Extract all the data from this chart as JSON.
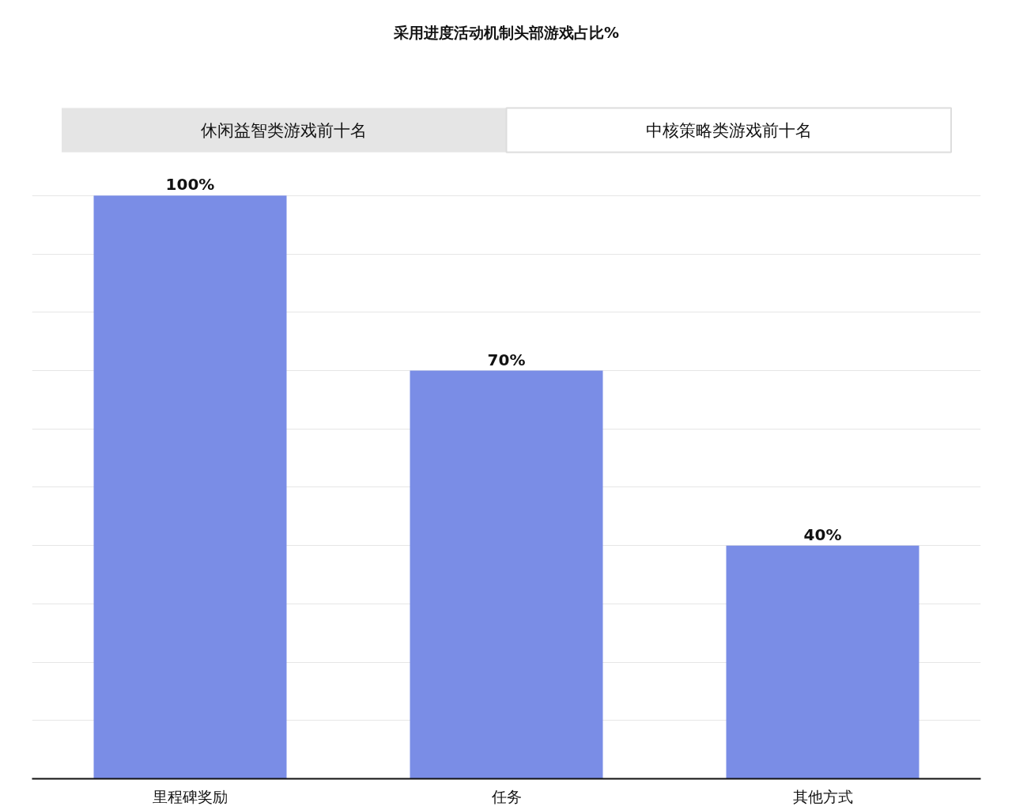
{
  "chart_data": {
    "type": "bar",
    "title": "采用进度活动机制头部游戏占比%",
    "annotations": [
      "休闲益智类游戏前十名",
      "中核策略类游戏前十名"
    ],
    "categories": [
      "里程碑奖励",
      "任务",
      "其他方式"
    ],
    "values": [
      100,
      70,
      40
    ],
    "value_labels": [
      "100%",
      "70%",
      "40%"
    ],
    "color": "#7a8de6",
    "grid": "y",
    "tick_labels": "x"
  }
}
